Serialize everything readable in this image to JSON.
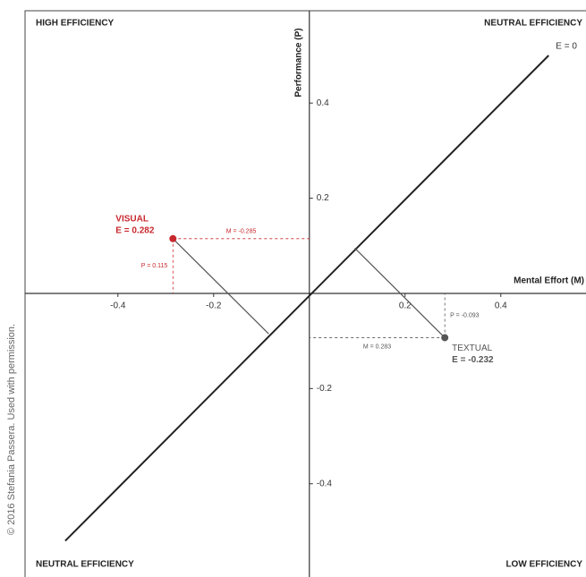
{
  "chart_data": {
    "type": "scatter",
    "quadrant_labels": {
      "top_left": "HIGH EFFICIENCY",
      "top_right": "NEUTRAL EFFICIENCY",
      "bottom_left": "NEUTRAL EFFICIENCY",
      "bottom_right": "LOW EFFICIENCY"
    },
    "x_label": "Mental Effort (M)",
    "y_label": "Performance (P)",
    "credit": "© 2016 Stefania Passera. Used with permission.",
    "xlim": [
      -0.594,
      0.578
    ],
    "ylim": [
      -0.596,
      0.594
    ],
    "xticks": [
      -0.4,
      -0.2,
      0.2,
      0.4
    ],
    "yticks": [
      0.4,
      0.2,
      -0.2,
      -0.4
    ],
    "e_line": {
      "label": "E = 0",
      "x": [
        -0.51,
        0.5
      ],
      "y": [
        -0.52,
        0.5
      ]
    },
    "series": [
      {
        "name": "VISUAL",
        "color": "#c8282d",
        "x": [
          -0.285
        ],
        "values": [
          0.115
        ],
        "x_labels": [
          "M = -0.285"
        ],
        "value_labels": [
          "P = 0.115"
        ],
        "e_label": "E = 0.282"
      },
      {
        "name": "TEXTUAL",
        "color": "#555555",
        "x": [
          0.283
        ],
        "values": [
          -0.093
        ],
        "x_labels": [
          "M = 0.283"
        ],
        "value_labels": [
          "P = -0.093"
        ],
        "e_label": "E = -0.232"
      }
    ]
  }
}
